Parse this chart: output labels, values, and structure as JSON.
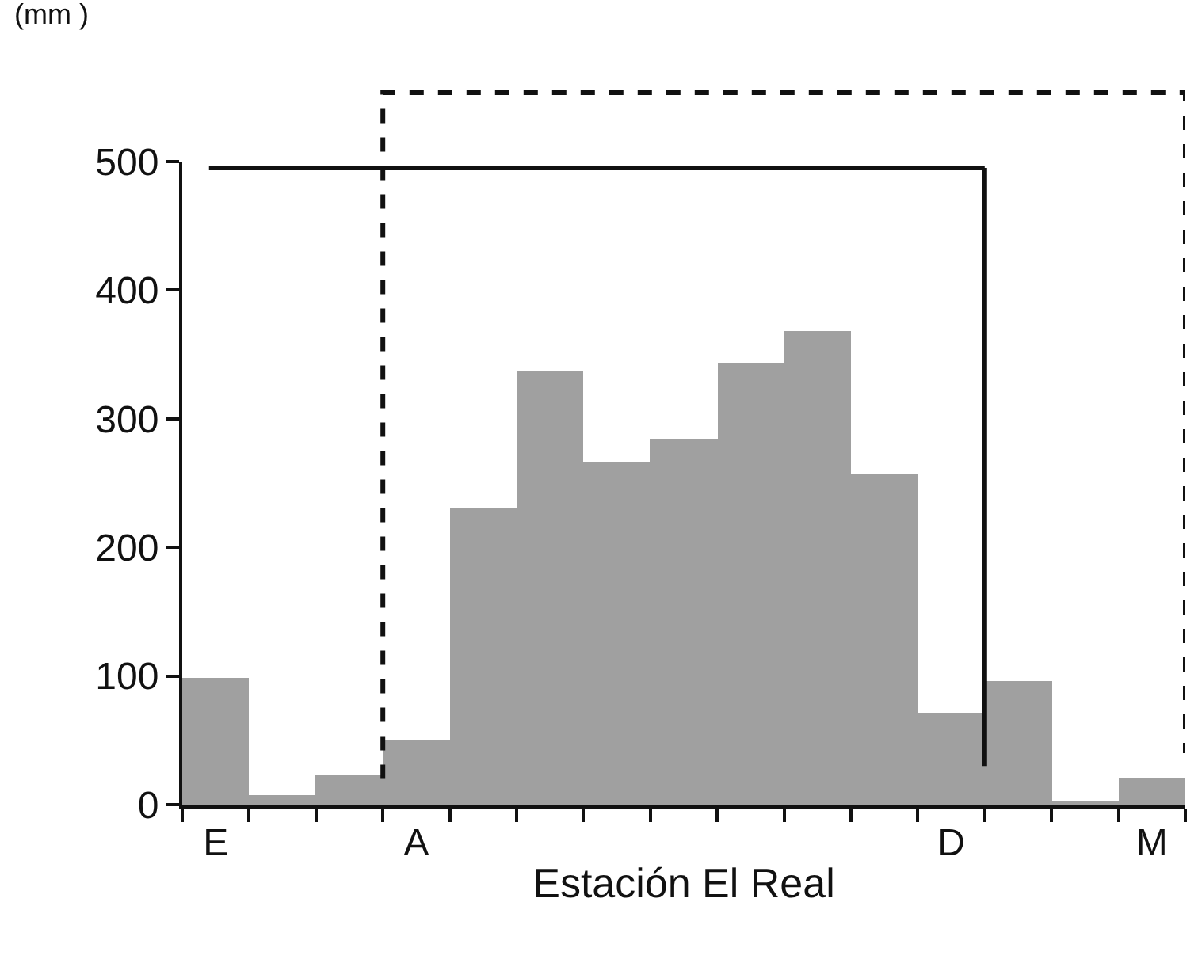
{
  "chart_data": {
    "type": "bar",
    "xlabel": "Estación El Real",
    "ylabel": "(mm )",
    "categories": [
      "E",
      null,
      null,
      "A",
      null,
      null,
      null,
      null,
      null,
      null,
      null,
      "D",
      null,
      null,
      "M"
    ],
    "values": [
      98,
      7,
      24,
      50,
      230,
      338,
      266,
      284,
      343,
      368,
      257,
      71,
      96,
      2,
      21
    ],
    "color": "#a0a0a0",
    "ylim": [
      0,
      500
    ],
    "yticks": [
      0,
      100,
      200,
      300,
      400,
      500
    ],
    "ref_lines": [
      {
        "axis": "y",
        "value": 495,
        "line_style": "solid"
      }
    ]
  }
}
